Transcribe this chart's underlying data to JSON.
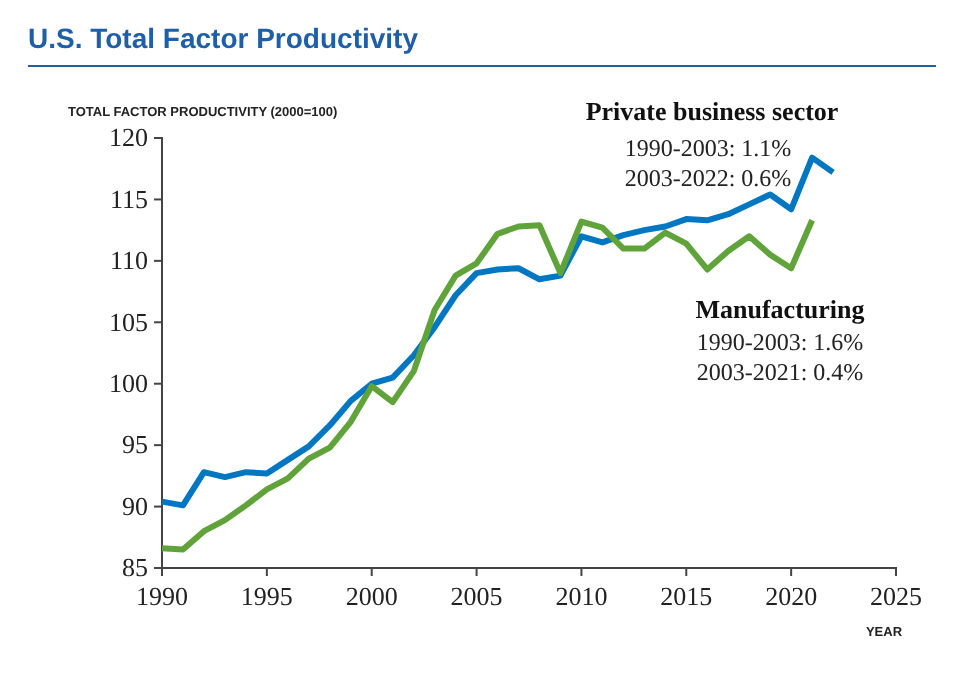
{
  "chart_data": {
    "type": "line",
    "title": "U.S. Total Factor Productivity",
    "ylabel": "TOTAL FACTOR PRODUCTIVITY (2000=100)",
    "xlabel": "YEAR",
    "x": [
      1990,
      1991,
      1992,
      1993,
      1994,
      1995,
      1996,
      1997,
      1998,
      1999,
      2000,
      2001,
      2002,
      2003,
      2004,
      2005,
      2006,
      2007,
      2008,
      2009,
      2010,
      2011,
      2012,
      2013,
      2014,
      2015,
      2016,
      2017,
      2018,
      2019,
      2020,
      2021,
      2022
    ],
    "series": [
      {
        "name": "Private business sector",
        "color": "#0077c0",
        "values": [
          90.4,
          90.1,
          92.8,
          92.4,
          92.8,
          92.7,
          93.8,
          94.9,
          96.6,
          98.6,
          100,
          100.5,
          102.3,
          104.6,
          107.2,
          109,
          109.3,
          109.4,
          108.5,
          108.8,
          112,
          111.5,
          112.1,
          112.5,
          112.8,
          113.4,
          113.3,
          113.8,
          114.6,
          115.4,
          114.2,
          118.4,
          117.2
        ]
      },
      {
        "name": "Manufacturing",
        "color": "#5fa33a",
        "values": [
          86.6,
          86.5,
          88,
          88.9,
          90.1,
          91.4,
          92.3,
          93.9,
          94.8,
          96.9,
          99.8,
          98.5,
          101,
          106,
          108.8,
          109.8,
          112.2,
          112.8,
          112.9,
          109,
          113.2,
          112.7,
          111,
          111,
          112.3,
          111.4,
          109.3,
          110.8,
          112,
          110.5,
          109.4,
          113.3,
          null
        ]
      }
    ],
    "annotations": [
      "1990-2003: 1.1%",
      "2003-2022: 0.6%",
      "1990-2003: 1.6%",
      "2003-2021: 0.4%"
    ],
    "xlim": [
      1990,
      2025
    ],
    "xticks": [
      1990,
      1995,
      2000,
      2005,
      2010,
      2015,
      2020,
      2025
    ],
    "ylim": [
      85,
      120
    ],
    "yticks": [
      85,
      90,
      95,
      100,
      105,
      110,
      115,
      120
    ],
    "grid": false,
    "marker": "none",
    "line_style": "solid"
  }
}
